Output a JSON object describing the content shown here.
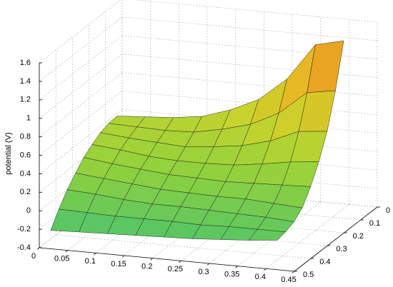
{
  "chart_data": {
    "type": "surface",
    "zlabel": "potential (V)",
    "x": [
      0.02,
      0.07,
      0.12,
      0.17,
      0.22,
      0.27,
      0.32,
      0.37,
      0.42
    ],
    "y": [
      0.1,
      0.15,
      0.2,
      0.25,
      0.3,
      0.35,
      0.4,
      0.45,
      0.5
    ],
    "z": [
      [
        0.48,
        0.5,
        0.52,
        0.56,
        0.66,
        0.8,
        1.05,
        1.45,
        1.52
      ],
      [
        0.47,
        0.46,
        0.45,
        0.46,
        0.52,
        0.6,
        0.75,
        1.0,
        1.05
      ],
      [
        0.44,
        0.41,
        0.39,
        0.37,
        0.4,
        0.44,
        0.52,
        0.65,
        0.68
      ],
      [
        0.38,
        0.35,
        0.31,
        0.29,
        0.29,
        0.3,
        0.34,
        0.39,
        0.42
      ],
      [
        0.31,
        0.27,
        0.24,
        0.21,
        0.2,
        0.19,
        0.2,
        0.21,
        0.22
      ],
      [
        0.21,
        0.18,
        0.15,
        0.12,
        0.11,
        0.1,
        0.1,
        0.08,
        0.06
      ],
      [
        0.1,
        0.08,
        0.05,
        0.03,
        0.03,
        0.02,
        0.01,
        0,
        -0.02
      ],
      [
        -0.04,
        -0.05,
        -0.06,
        -0.06,
        -0.06,
        -0.07,
        -0.06,
        -0.06,
        -0.06
      ],
      [
        -0.2,
        -0.19,
        -0.18,
        -0.17,
        -0.16,
        -0.15,
        -0.13,
        -0.11,
        -0.08
      ]
    ],
    "xlim": [
      0,
      0.45
    ],
    "ylim": [
      0,
      0.5
    ],
    "zlim": [
      -0.4,
      1.6
    ],
    "xticks": [
      0,
      0.05,
      0.1,
      0.15,
      0.2,
      0.25,
      0.3,
      0.35,
      0.4,
      0.45
    ],
    "yticks": [
      0,
      0.1,
      0.2,
      0.3,
      0.4,
      0.5
    ],
    "zticks": [
      -0.4,
      -0.2,
      0,
      0.2,
      0.4,
      0.6,
      0.8,
      1,
      1.2,
      1.4,
      1.6
    ],
    "grid": true,
    "colormap": [
      "#4fc46a",
      "#8fd13e",
      "#c9d42c",
      "#e8b624",
      "#e8861e"
    ]
  }
}
